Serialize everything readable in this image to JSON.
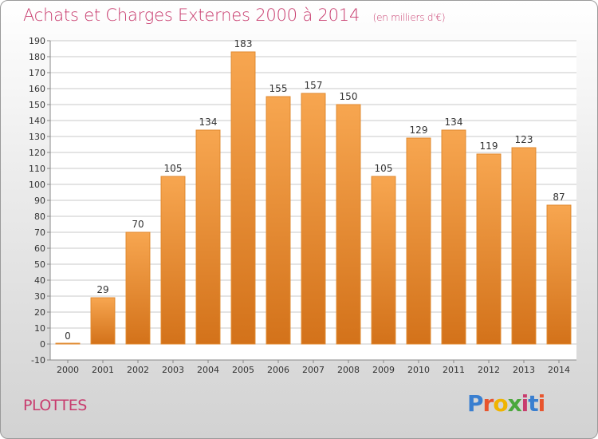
{
  "header": {
    "title": "Achats et Charges Externes 2000 à 2014",
    "subtitle": "(en milliers d'€)"
  },
  "footer": {
    "commune": "PLOTTES",
    "logo": "Proxiti",
    "logo_colors": [
      "#3a7fd0",
      "#e8552e",
      "#f0b400",
      "#4aa83c",
      "#c83c6e",
      "#3a7fd0",
      "#e8552e"
    ]
  },
  "colors": {
    "title": "#c83c6e",
    "bar_light": "#f7a650",
    "bar_dark": "#d3721a",
    "bar_border": "#e08a30",
    "grid": "#c8c8c8"
  },
  "chart_data": {
    "type": "bar",
    "title": "Achats et Charges Externes 2000 à 2014",
    "subtitle": "(en milliers d'€)",
    "categories": [
      "2000",
      "2001",
      "2002",
      "2003",
      "2004",
      "2005",
      "2006",
      "2007",
      "2008",
      "2009",
      "2010",
      "2011",
      "2012",
      "2013",
      "2014"
    ],
    "values": [
      0,
      29,
      70,
      105,
      134,
      183,
      155,
      157,
      150,
      105,
      129,
      134,
      119,
      123,
      87
    ],
    "ylim": [
      -10,
      190
    ],
    "yticks": [
      -10,
      0,
      10,
      20,
      30,
      40,
      50,
      60,
      70,
      80,
      90,
      100,
      110,
      120,
      130,
      140,
      150,
      160,
      170,
      180,
      190
    ],
    "grid": true
  }
}
